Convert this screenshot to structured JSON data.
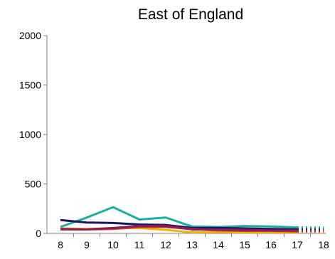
{
  "chart_data": {
    "type": "line",
    "title": "East of England",
    "xlabel": "",
    "ylabel": "",
    "x": [
      "8",
      "9",
      "10",
      "11",
      "12",
      "13",
      "14",
      "15",
      "16",
      "17",
      "18"
    ],
    "y_ticks": [
      "0",
      "500",
      "1000",
      "1500",
      "2000"
    ],
    "ylim": [
      0,
      2000
    ],
    "grid": false,
    "legend": "none",
    "solid_until_index": 9,
    "series": [
      {
        "color": "#1aae9f",
        "values": [
          65,
          160,
          265,
          140,
          160,
          70,
          65,
          75,
          70,
          60,
          60
        ]
      },
      {
        "color": "#1b1464",
        "values": [
          135,
          110,
          105,
          90,
          85,
          55,
          55,
          50,
          45,
          40,
          40
        ]
      },
      {
        "color": "#f4b400",
        "values": [
          50,
          45,
          50,
          55,
          35,
          10,
          15,
          10,
          12,
          10,
          10
        ]
      },
      {
        "color": "#c0392b",
        "values": [
          40,
          40,
          45,
          65,
          65,
          45,
          30,
          25,
          25,
          20,
          20
        ]
      },
      {
        "color": "#8e1b5b",
        "values": [
          45,
          40,
          55,
          75,
          75,
          40,
          40,
          35,
          30,
          30,
          30
        ]
      }
    ]
  }
}
